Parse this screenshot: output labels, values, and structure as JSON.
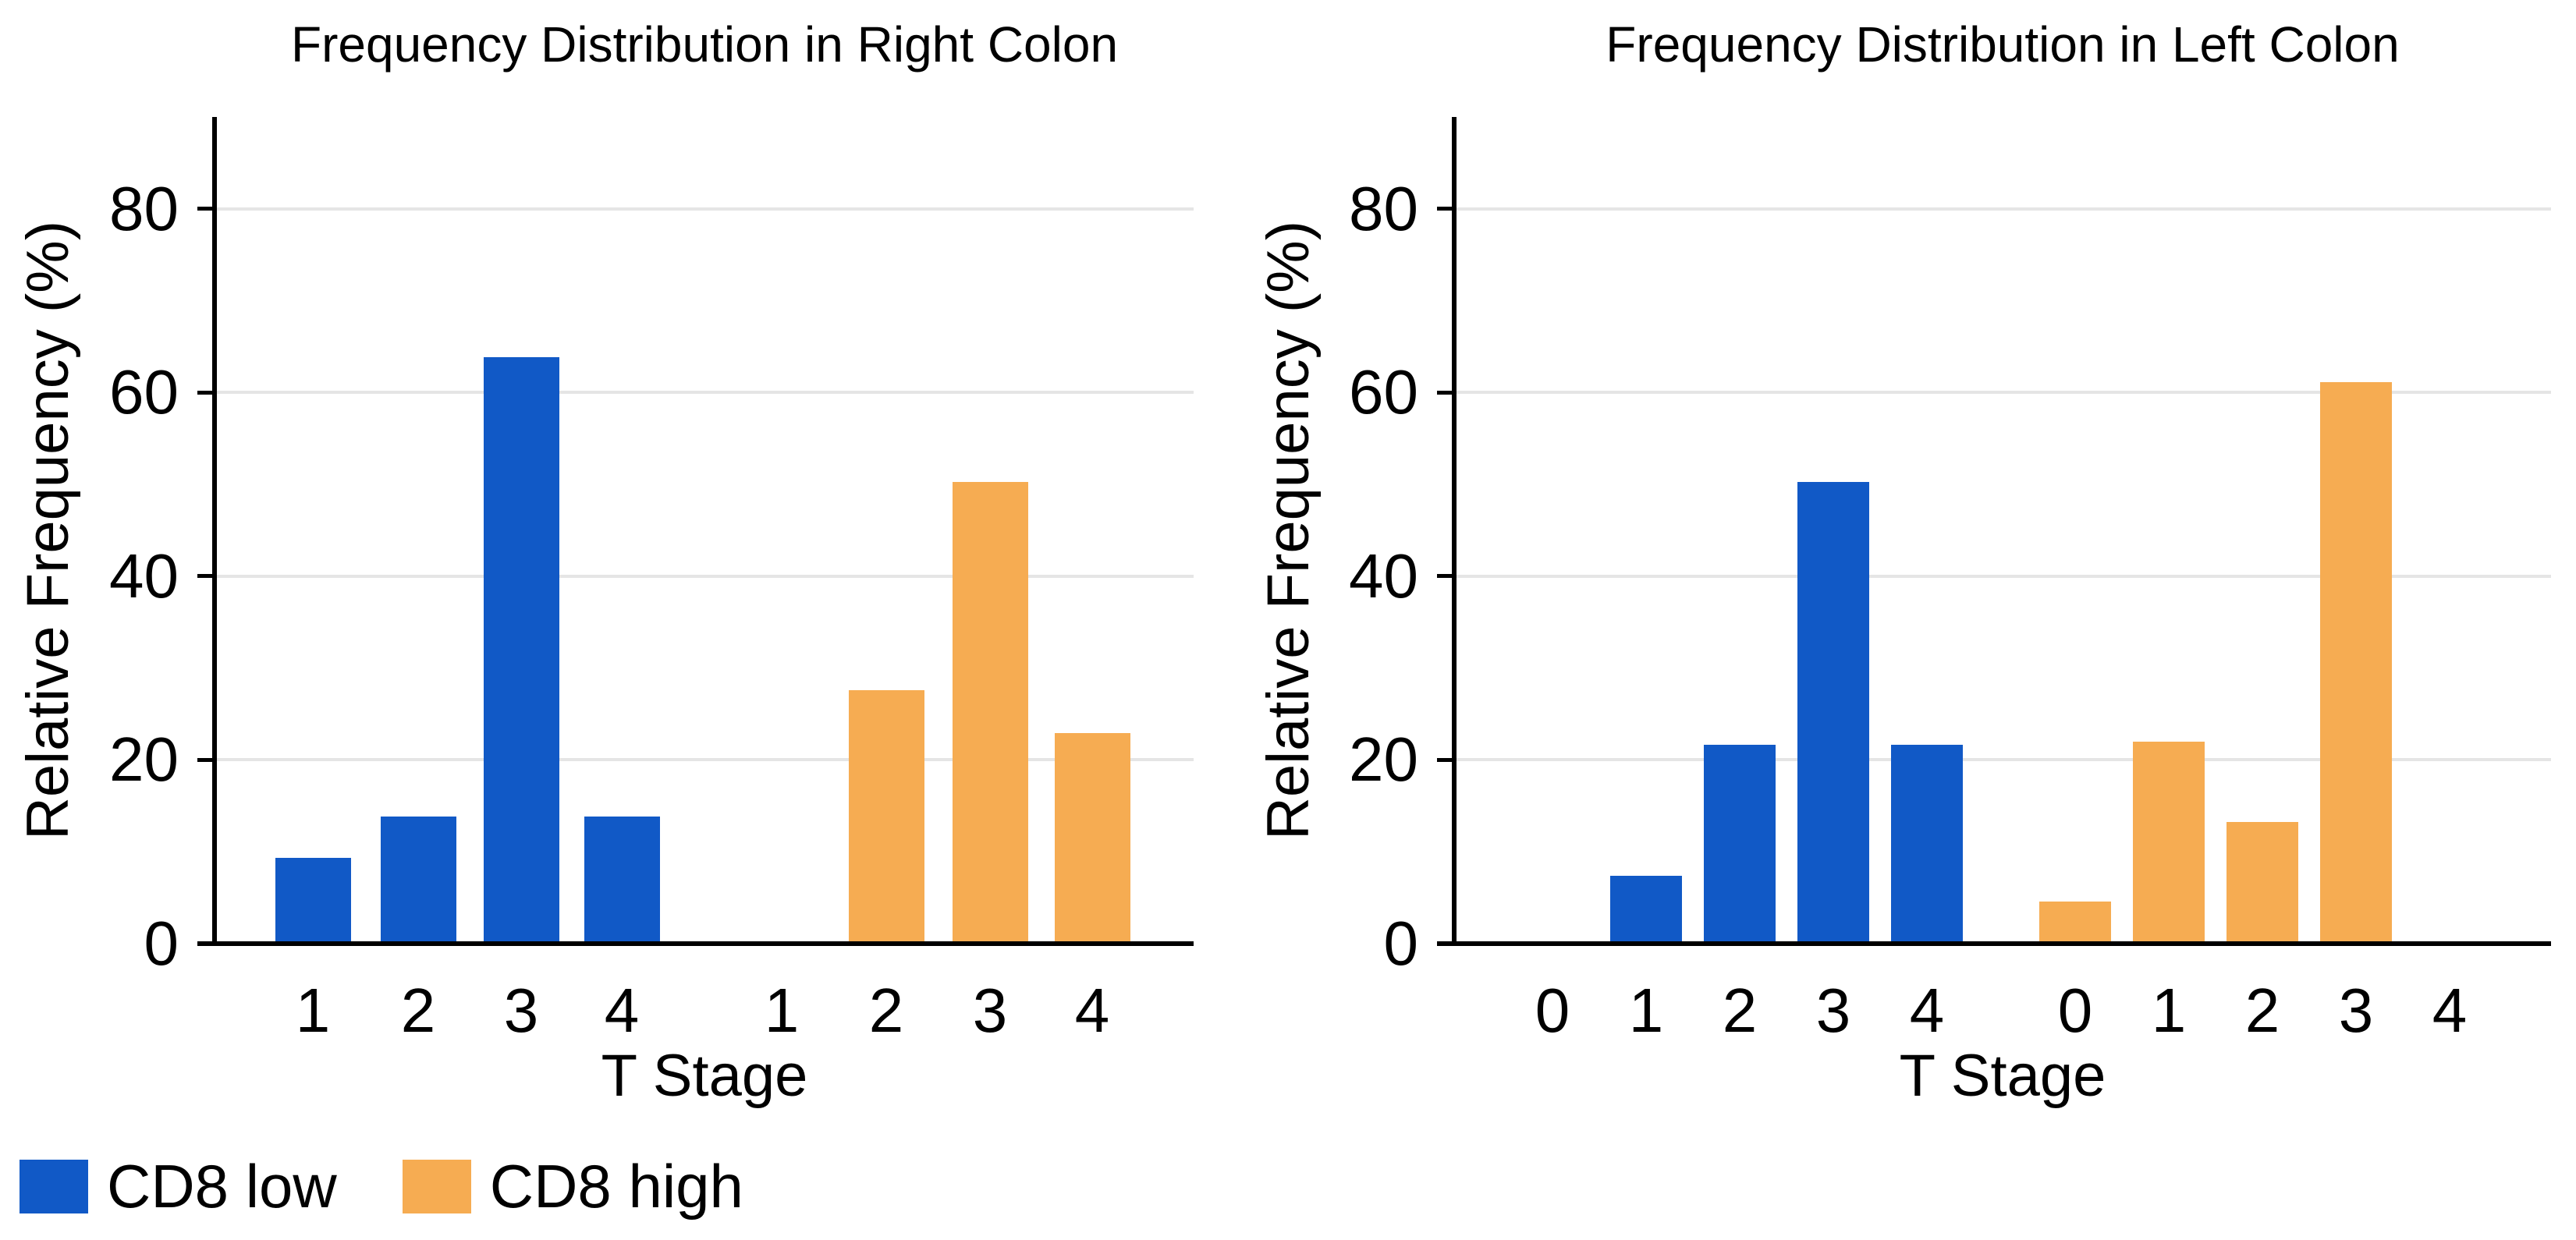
{
  "colors": {
    "cd8_low": "#1159c6",
    "cd8_high": "#f6ac52",
    "gridline": "#e5e5e5",
    "axis": "#000000",
    "background": "#ffffff",
    "text": "#000000"
  },
  "series_colors": {
    "CD8 low": "#1159c6",
    "CD8 high": "#f6ac52"
  },
  "legend": {
    "items": [
      {
        "label": "CD8 low",
        "color": "#1159c6"
      },
      {
        "label": "CD8 high",
        "color": "#f6ac52"
      }
    ],
    "position": "bottom-left"
  },
  "chart_data": [
    {
      "type": "bar",
      "title": "Frequency Distribution in Right Colon",
      "xlabel": "T Stage",
      "ylabel": "Relative Frequency (%)",
      "ylim": [
        0,
        90
      ],
      "yticks": [
        0,
        20,
        40,
        60,
        80
      ],
      "grid": true,
      "legend_position": "figure-bottom-left",
      "series": [
        "CD8 low",
        "CD8 high"
      ],
      "slots": [
        {
          "label": "1",
          "series": "CD8 low",
          "value": 9.1
        },
        {
          "label": "2",
          "series": "CD8 low",
          "value": 13.6
        },
        {
          "label": "3",
          "series": "CD8 low",
          "value": 63.6
        },
        {
          "label": "4",
          "series": "CD8 low",
          "value": 13.6
        },
        {
          "label": "1",
          "series": "CD8 high",
          "value": 0
        },
        {
          "label": "2",
          "series": "CD8 high",
          "value": 27.3
        },
        {
          "label": "3",
          "series": "CD8 high",
          "value": 50.0
        },
        {
          "label": "4",
          "series": "CD8 high",
          "value": 22.7
        }
      ]
    },
    {
      "type": "bar",
      "title": "Frequency Distribution in Left Colon",
      "xlabel": "T Stage",
      "ylabel": "Relative Frequency (%)",
      "ylim": [
        0,
        90
      ],
      "yticks": [
        0,
        20,
        40,
        60,
        80
      ],
      "grid": true,
      "legend_position": "figure-bottom-left",
      "series": [
        "CD8 low",
        "CD8 high"
      ],
      "slots": [
        {
          "label": "0",
          "series": "CD8 low",
          "value": 0
        },
        {
          "label": "1",
          "series": "CD8 low",
          "value": 7.1
        },
        {
          "label": "2",
          "series": "CD8 low",
          "value": 21.4
        },
        {
          "label": "3",
          "series": "CD8 low",
          "value": 50.0
        },
        {
          "label": "4",
          "series": "CD8 low",
          "value": 21.4
        },
        {
          "label": "0",
          "series": "CD8 high",
          "value": 4.3
        },
        {
          "label": "1",
          "series": "CD8 high",
          "value": 21.7
        },
        {
          "label": "2",
          "series": "CD8 high",
          "value": 13.0
        },
        {
          "label": "3",
          "series": "CD8 high",
          "value": 60.9
        },
        {
          "label": "4",
          "series": "CD8 high",
          "value": 0
        }
      ]
    }
  ]
}
